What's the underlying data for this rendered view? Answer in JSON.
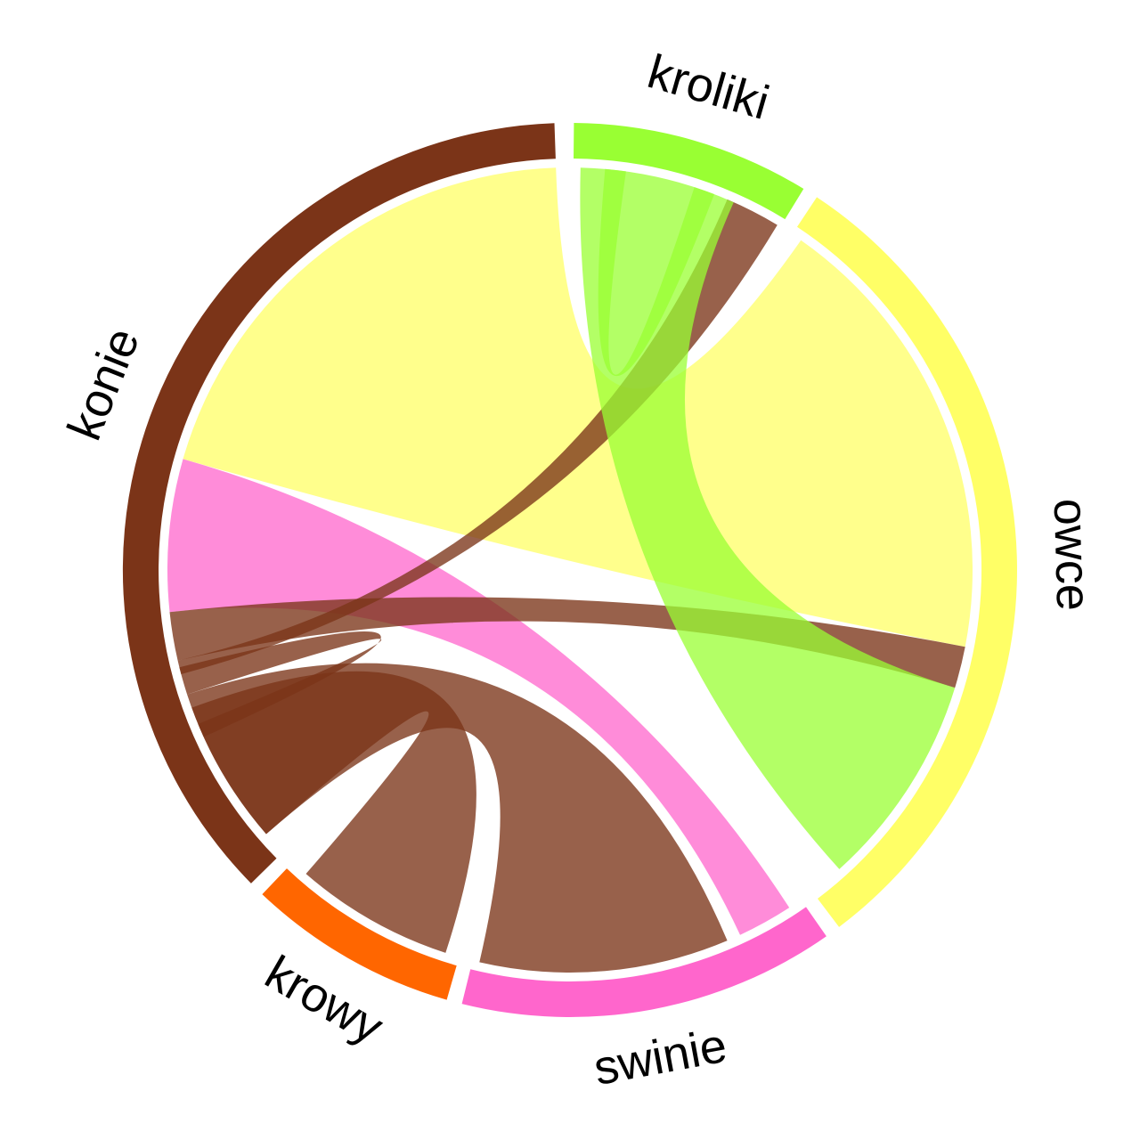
{
  "chart_data": {
    "type": "chord",
    "sectors": [
      {
        "id": "kroliki",
        "label": "kroliki",
        "color": "#99FF33"
      },
      {
        "id": "owce",
        "label": "owce",
        "color": "#FFFF66"
      },
      {
        "id": "swinie",
        "label": "swinie",
        "color": "#FF66CC"
      },
      {
        "id": "krowy",
        "label": "krowy",
        "color": "#FF6600"
      },
      {
        "id": "konie",
        "label": "konie",
        "color": "#7B3418"
      }
    ],
    "links": [
      {
        "from": "konie",
        "to": "owce",
        "color": "#FFFF66"
      },
      {
        "from": "konie",
        "to": "swinie",
        "color": "#FF66CC"
      },
      {
        "from": "konie",
        "to": "owce",
        "color": "#7B3418"
      },
      {
        "from": "konie",
        "to": "kroliki",
        "color": "#7B3418"
      },
      {
        "from": "konie",
        "to": "krowy",
        "color": "#7B3418"
      },
      {
        "from": "konie",
        "to": "swinie",
        "color": "#7B3418"
      },
      {
        "from": "kroliki",
        "to": "owce",
        "color": "#99FF33"
      },
      {
        "from": "kroliki",
        "to": "kroliki",
        "color": "#99FF33"
      },
      {
        "from": "konie",
        "to": "konie",
        "color": "#7B3418"
      }
    ]
  }
}
